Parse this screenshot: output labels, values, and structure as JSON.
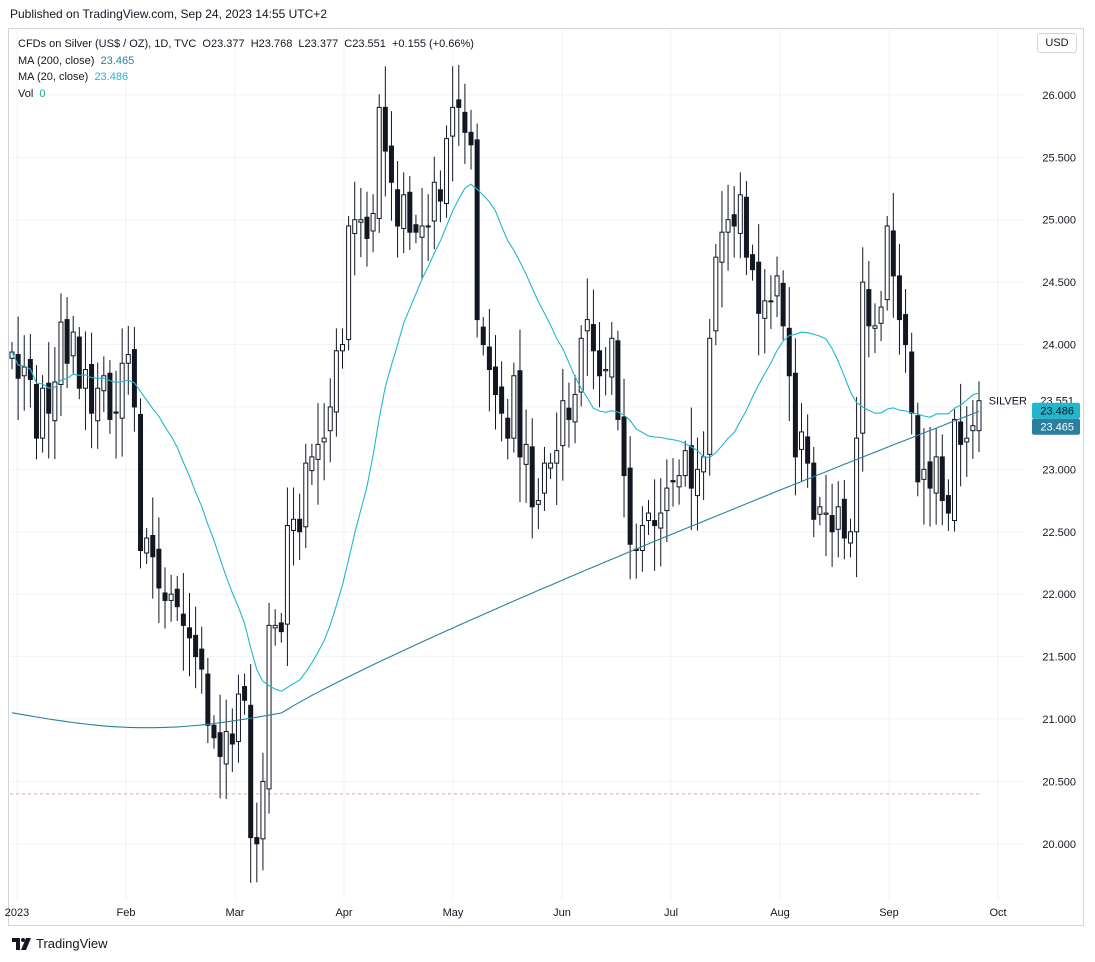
{
  "published": "Published on TradingView.com, Sep 24, 2023 14:55 UTC+2",
  "legend": {
    "symbol_line": "CFDs on Silver (US$ / OZ), 1D, TVC",
    "ohlc": "O23.377  H23.768  L23.377  C23.551  +0.155 (+0.66%)",
    "ma200_label": "MA (200, close)",
    "ma200_value": "23.465",
    "ma20_label": "MA (20, close)",
    "ma20_value": "23.486",
    "vol_label": "Vol",
    "vol_value": "0"
  },
  "currency_button": "USD",
  "brand": "TradingView",
  "colors": {
    "candle": "#131722",
    "ma20": "#22b7cf",
    "ma200": "#2a7f9e",
    "grid": "#f0f3fa",
    "dashed_level": "#ef9a9a"
  },
  "chart_data": {
    "type": "candlestick",
    "title": "CFDs on Silver (US$ / OZ), 1D, TVC",
    "ylim": [
      19.55,
      26.52
    ],
    "y_ticks": [
      "26.000",
      "25.500",
      "25.000",
      "24.500",
      "24.000",
      "23.500",
      "23.000",
      "22.500",
      "22.000",
      "21.500",
      "21.000",
      "20.500",
      "20.000"
    ],
    "x_ticks": [
      "2023",
      "Feb",
      "Mar",
      "Apr",
      "May",
      "Jun",
      "Jul",
      "Aug",
      "Sep",
      "Oct"
    ],
    "dashed_level": 20.4,
    "last_label": "SILVER",
    "last_price": "23.551",
    "ma20_value": "23.486",
    "ma200_value": "23.465",
    "ohlc_close": [
      23.94,
      23.73,
      23.82,
      23.72,
      23.25,
      23.65,
      23.45,
      23.7,
      24.18,
      23.85,
      24.1,
      23.65,
      23.8,
      23.45,
      23.65,
      23.75,
      23.4,
      23.45,
      23.85,
      23.92,
      23.5,
      22.35,
      22.45,
      22.3,
      22.05,
      21.95,
      22.0,
      21.9,
      21.75,
      21.65,
      21.5,
      21.4,
      20.95,
      20.85,
      20.7,
      20.9,
      20.8,
      21.2,
      21.15,
      20.05,
      20.0,
      20.5,
      21.75,
      21.75,
      21.7,
      22.55,
      22.6,
      22.5,
      23.05,
      23.1,
      23.2,
      23.25,
      23.5,
      23.95,
      24.0,
      24.95,
      25.0,
      25.0,
      24.85,
      25.05,
      25.9,
      25.55,
      25.3,
      24.95,
      25.2,
      24.9,
      24.9,
      24.95,
      24.95,
      25.3,
      25.15,
      25.65,
      25.9,
      25.9,
      25.7,
      25.6,
      24.2,
      24.0,
      23.8,
      23.6,
      23.45,
      23.25,
      23.75,
      23.1,
      23.2,
      22.7,
      22.75,
      23.05,
      23.05,
      23.15,
      23.55,
      23.4,
      23.6,
      24.05,
      24.2,
      23.95,
      23.75,
      23.8,
      24.05,
      23.4,
      22.95,
      22.4,
      22.35,
      22.55,
      22.65,
      22.55,
      22.65,
      22.85,
      22.9,
      22.95,
      23.15,
      22.85,
      23.0,
      23.1,
      24.05,
      24.7,
      24.9,
      25.0,
      24.95,
      25.2,
      24.7,
      24.6,
      24.25,
      24.35,
      24.35,
      24.55,
      24.15,
      23.75,
      23.1,
      23.3,
      23.05,
      22.6,
      22.7,
      22.65,
      22.5,
      22.7,
      22.45,
      22.5,
      23.25,
      24.5,
      24.15,
      24.15,
      24.3,
      24.95,
      24.55,
      24.2,
      24.0,
      23.45,
      22.9,
      23.0,
      22.85,
      23.1,
      22.75,
      22.65,
      23.4,
      23.2,
      23.25,
      23.35,
      23.55
    ]
  }
}
